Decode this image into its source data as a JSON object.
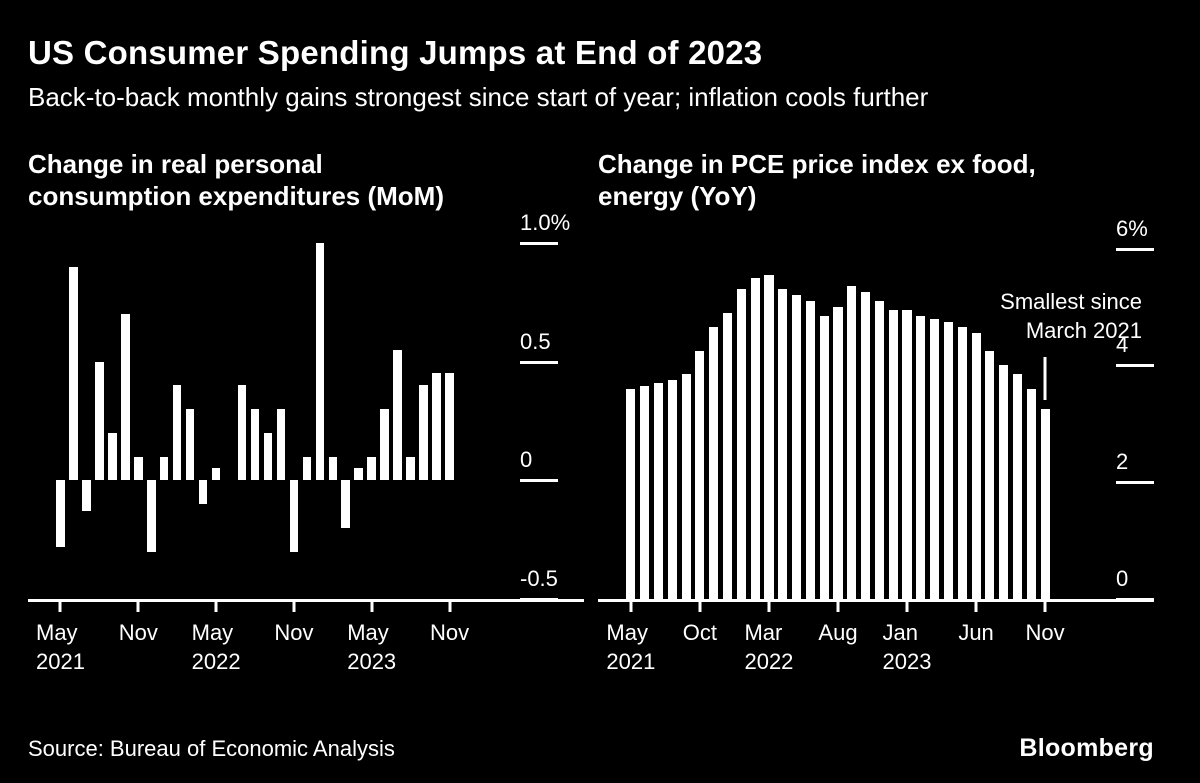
{
  "header": {
    "title": "US Consumer Spending Jumps at End of 2023",
    "subtitle": "Back-to-back monthly gains strongest since start of year; inflation cools further"
  },
  "footer": {
    "source": "Source: Bureau of Economic Analysis",
    "brand": "Bloomberg"
  },
  "colors": {
    "background": "#000000",
    "text": "#ffffff",
    "bars": "#ffffff"
  },
  "chart_data": [
    {
      "type": "bar",
      "title": "Change in real personal consumption expenditures (MoM)",
      "title_lines": [
        "Change in real personal",
        "consumption expenditures (MoM)"
      ],
      "unit": "percent",
      "x": [
        "May 2021",
        "Jun 2021",
        "Jul 2021",
        "Aug 2021",
        "Sep 2021",
        "Oct 2021",
        "Nov 2021",
        "Dec 2021",
        "Jan 2022",
        "Feb 2022",
        "Mar 2022",
        "Apr 2022",
        "May 2022",
        "Jun 2022",
        "Jul 2022",
        "Aug 2022",
        "Sep 2022",
        "Oct 2022",
        "Nov 2022",
        "Dec 2022",
        "Jan 2023",
        "Feb 2023",
        "Mar 2023",
        "Apr 2023",
        "May 2023",
        "Jun 2023",
        "Jul 2023",
        "Aug 2023",
        "Sep 2023",
        "Oct 2023",
        "Nov 2023"
      ],
      "values": [
        -0.28,
        0.9,
        -0.13,
        0.5,
        0.2,
        0.7,
        0.1,
        -0.3,
        0.1,
        0.4,
        0.3,
        -0.1,
        0.05,
        0.0,
        0.4,
        0.3,
        0.2,
        0.3,
        -0.3,
        0.1,
        1.0,
        0.1,
        -0.2,
        0.05,
        0.1,
        0.3,
        0.55,
        0.1,
        0.4,
        0.45,
        0.45
      ],
      "ylim": [
        -0.5,
        1.05
      ],
      "grid": false,
      "yticks": [
        {
          "value": 1.0,
          "label": "1.0%"
        },
        {
          "value": 0.5,
          "label": "0.5"
        },
        {
          "value": 0,
          "label": "0"
        },
        {
          "value": -0.5,
          "label": "-0.5"
        }
      ],
      "xticks": [
        {
          "index": 0,
          "line1": "May",
          "line2": "2021"
        },
        {
          "index": 6,
          "line1": "Nov"
        },
        {
          "index": 12,
          "line1": "May",
          "line2": "2022"
        },
        {
          "index": 18,
          "line1": "Nov"
        },
        {
          "index": 24,
          "line1": "May",
          "line2": "2023"
        },
        {
          "index": 30,
          "line1": "Nov"
        }
      ]
    },
    {
      "type": "bar",
      "title": "Change in PCE price index ex food, energy (YoY)",
      "title_lines": [
        "Change in PCE price index ex food,",
        "energy (YoY)"
      ],
      "unit": "percent",
      "x": [
        "May 2021",
        "Jun 2021",
        "Jul 2021",
        "Aug 2021",
        "Sep 2021",
        "Oct 2021",
        "Nov 2021",
        "Dec 2021",
        "Jan 2022",
        "Feb 2022",
        "Mar 2022",
        "Apr 2022",
        "May 2022",
        "Jun 2022",
        "Jul 2022",
        "Aug 2022",
        "Sep 2022",
        "Oct 2022",
        "Nov 2022",
        "Dec 2022",
        "Jan 2023",
        "Feb 2023",
        "Mar 2023",
        "Apr 2023",
        "May 2023",
        "Jun 2023",
        "Jul 2023",
        "Aug 2023",
        "Sep 2023",
        "Oct 2023",
        "Nov 2023"
      ],
      "values": [
        3.6,
        3.65,
        3.7,
        3.75,
        3.85,
        4.25,
        4.65,
        4.9,
        5.3,
        5.5,
        5.55,
        5.3,
        5.2,
        5.1,
        4.85,
        5.0,
        5.35,
        5.25,
        5.1,
        4.95,
        4.95,
        4.85,
        4.8,
        4.75,
        4.65,
        4.55,
        4.25,
        4.0,
        3.85,
        3.6,
        3.25
      ],
      "ylim": [
        0,
        6.3
      ],
      "grid": false,
      "yticks": [
        {
          "value": 6,
          "label": "6%"
        },
        {
          "value": 4,
          "label": "4"
        },
        {
          "value": 2,
          "label": "2"
        },
        {
          "value": 0,
          "label": "0"
        }
      ],
      "xticks": [
        {
          "index": 0,
          "line1": "May",
          "line2": "2021"
        },
        {
          "index": 5,
          "line1": "Oct"
        },
        {
          "index": 10,
          "line1": "Mar",
          "line2": "2022"
        },
        {
          "index": 15,
          "line1": "Aug"
        },
        {
          "index": 20,
          "line1": "Jan",
          "line2": "2023"
        },
        {
          "index": 25,
          "line1": "Jun"
        },
        {
          "index": 30,
          "line1": "Nov"
        }
      ],
      "annotation": {
        "lines": [
          "Smallest since",
          "March 2021"
        ],
        "target_index": 30,
        "pointer_from": 4.15,
        "pointer_to": 3.4
      }
    }
  ]
}
